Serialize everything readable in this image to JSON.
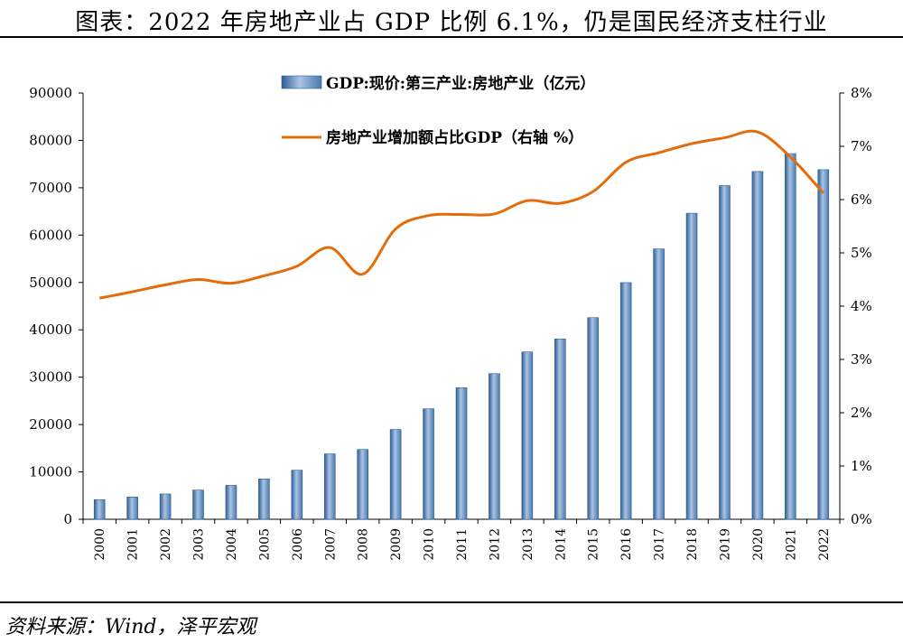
{
  "title": "图表：2022 年房地产业占 GDP 比例 6.1%，仍是国民经济支柱行业",
  "source": "资料来源：Wind，泽平宏观",
  "chart_data": {
    "type": "bar+line",
    "categories": [
      "2000",
      "2001",
      "2002",
      "2003",
      "2004",
      "2005",
      "2006",
      "2007",
      "2008",
      "2009",
      "2010",
      "2011",
      "2012",
      "2013",
      "2014",
      "2015",
      "2016",
      "2017",
      "2018",
      "2019",
      "2020",
      "2021",
      "2022"
    ],
    "series": [
      {
        "name": "GDP:现价:第三产业:房地产业（亿元）",
        "type": "bar",
        "axis": "left",
        "color": "#4f81bd",
        "values": [
          4150,
          4700,
          5350,
          6170,
          7170,
          8520,
          10370,
          13810,
          14740,
          18970,
          23330,
          27780,
          30750,
          35340,
          38090,
          42570,
          49970,
          57090,
          64620,
          70450,
          73430,
          77210,
          73820
        ]
      },
      {
        "name": "房地产业增加额占比GDP（右轴 %）",
        "type": "line",
        "axis": "right",
        "color": "#e46c0a",
        "values": [
          4.15,
          4.27,
          4.4,
          4.5,
          4.43,
          4.57,
          4.75,
          5.1,
          4.6,
          5.45,
          5.7,
          5.72,
          5.73,
          5.98,
          5.93,
          6.15,
          6.7,
          6.88,
          7.05,
          7.16,
          7.27,
          6.8,
          6.12
        ]
      }
    ],
    "y_left": {
      "min": 0,
      "max": 90000,
      "ticks": [
        "0",
        "10000",
        "20000",
        "30000",
        "40000",
        "50000",
        "60000",
        "70000",
        "80000",
        "90000"
      ]
    },
    "y_right": {
      "min": 0,
      "max": 8,
      "ticks": [
        "0%",
        "1%",
        "2%",
        "3%",
        "4%",
        "5%",
        "6%",
        "7%",
        "8%"
      ]
    },
    "grid": false,
    "legend_position": "top-center"
  }
}
